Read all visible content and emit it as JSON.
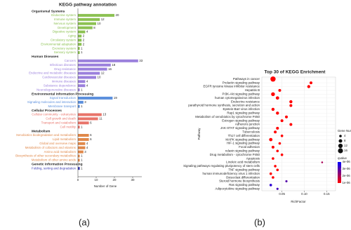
{
  "chart_data": [
    {
      "type": "bar",
      "orientation": "horizontal",
      "title": "KEGG pathway annotation",
      "xlabel": "Number of Gene",
      "panel_label": "(a)",
      "xlim": [
        0,
        35
      ],
      "xticks": [
        0,
        10,
        20,
        30
      ],
      "groups": [
        {
          "name": "Organismal Systems",
          "color": "#8cc152",
          "categories": [
            "Endocrine system",
            "Immune system",
            "Nervous system",
            "Development",
            "Digestive system",
            "Aging",
            "Circulatory system",
            "Environmental adaptation",
            "Excretory system",
            "Sensory system"
          ],
          "values": [
            20,
            12,
            10,
            8,
            4,
            2,
            2,
            2,
            1,
            1
          ]
        },
        {
          "name": "Human Diseases",
          "color": "#9b80dc",
          "categories": [
            "Cancers",
            "Infectious diseases",
            "Drug resistance",
            "Endocrine and metabolic diseases",
            "Cardiovascular diseases",
            "Immune diseases",
            "Substance dependence",
            "Neurodegenerative diseases"
          ],
          "values": [
            33,
            18,
            16,
            12,
            10,
            4,
            4,
            1
          ]
        },
        {
          "name": "Environmental Information Processing",
          "color": "#5b8fdc",
          "categories": [
            "Signal transduction",
            "Signaling molecules and interaction",
            "Membrane transport"
          ],
          "values": [
            19,
            3,
            1
          ]
        },
        {
          "name": "Cellular Processes",
          "color": "#e8746a",
          "categories": [
            "Cellular community - eukaryotes",
            "Cell growth and death",
            "Transport and catabolism",
            "Cell motility"
          ],
          "values": [
            13,
            11,
            6,
            1
          ]
        },
        {
          "name": "Metabolism",
          "color": "#e0884a",
          "categories": [
            "Xenobiotics biodegradation and metabolism",
            "Lipid metabolism",
            "Global and overview maps",
            "Metabolism of cofactors and vitamins",
            "Amino acid metabolism",
            "Biosynthesis of other secondary metabolites",
            "Metabolism of other amino acids"
          ],
          "values": [
            6,
            6,
            4,
            4,
            3,
            1,
            1
          ]
        },
        {
          "name": "Genetic Information Processing",
          "color": "#3a3ab0",
          "categories": [
            "Folding, sorting and degradation"
          ],
          "values": [
            1
          ]
        }
      ]
    },
    {
      "type": "scatter",
      "title": "Top 30 of KEGG Enrichment",
      "xlabel": "RichFactor",
      "ylabel": "Pathway",
      "panel_label": "(b)",
      "categories": [
        "Pathways in cancer",
        "Prolactin signaling pathway",
        "EGFR tyrosine kinase inhibitor resistance",
        "Hepatitis B",
        "PI3K-Akt signaling pathway",
        "human cytomegalovirus infection",
        "Endocrine resistance",
        "parathyroid hormone synthesis, secretion and action",
        "Epstein-Barr virus infection",
        "Rap1 signaling pathway",
        "Metabolism of xenobiotics by cytochrome P450",
        "Estrogen signaling pathway",
        "Adherens junction",
        "JAK-STAT signaling pathway",
        "Tuberculosis",
        "Th17 cell differentiation",
        "MAPK signaling pathway",
        "HIF-1 signaling pathway",
        "Focal adhesion",
        "relaxin signaling pathway",
        "Drug metabolism - cytochrome P450",
        "Apoptosis",
        "Linoleic acid metabolism",
        "Signaling pathways regulating pluripotency of stem cells",
        "TNF signaling pathway",
        "human immunodeficiency virus 1 infection",
        "Osteoclast differentiation",
        "Steroid hormone biosynthesis",
        "Ras signaling pathway",
        "Adipocytokine signaling pathway"
      ],
      "values": [
        0.03,
        0.115,
        0.11,
        0.045,
        0.03,
        0.04,
        0.07,
        0.07,
        0.03,
        0.04,
        0.06,
        0.05,
        0.07,
        0.04,
        0.035,
        0.05,
        0.025,
        0.045,
        0.03,
        0.04,
        0.05,
        0.03,
        0.14,
        0.035,
        0.04,
        0.025,
        0.03,
        0.06,
        0.025,
        0.04
      ],
      "sizes": [
        17,
        5,
        6,
        5,
        9,
        7,
        6,
        5,
        6,
        6,
        5,
        5,
        5,
        5,
        5,
        4,
        7,
        4,
        5,
        4,
        4,
        4,
        2,
        4,
        4,
        4,
        4,
        3,
        4,
        3
      ],
      "qvalues": [
        1e-06,
        1e-06,
        1e-06,
        1e-06,
        1e-06,
        1e-06,
        1e-06,
        1e-06,
        1e-06,
        1e-06,
        1e-06,
        1e-06,
        1e-06,
        1e-06,
        1e-06,
        1e-06,
        1e-06,
        1e-06,
        1e-06,
        1e-06,
        1e-06,
        1e-06,
        2e-06,
        1e-06,
        1e-06,
        1e-06,
        1e-06,
        3e-06,
        3.5e-06,
        3.2e-06
      ],
      "xlim": [
        0.005,
        0.17
      ],
      "xticks": [
        0.05,
        {
          "value": 0.1,
          "label": "0.10"
        },
        0.15
      ],
      "grid": true,
      "size_legend": {
        "title": "Gene Number",
        "values": [
          4,
          8,
          12,
          16
        ]
      },
      "color_legend": {
        "title": "qvalue",
        "clim": [
          1e-06,
          4e-06
        ],
        "colors": [
          "#ff0000",
          "#0000ff"
        ],
        "ticks": [
          {
            "value": 4e-06,
            "label": "4e-06"
          },
          {
            "value": 3e-06,
            "label": "3e-06"
          },
          {
            "value": 2e-06,
            "label": "2e-06"
          },
          {
            "value": 1e-06,
            "label": "1e-06"
          }
        ]
      }
    }
  ]
}
